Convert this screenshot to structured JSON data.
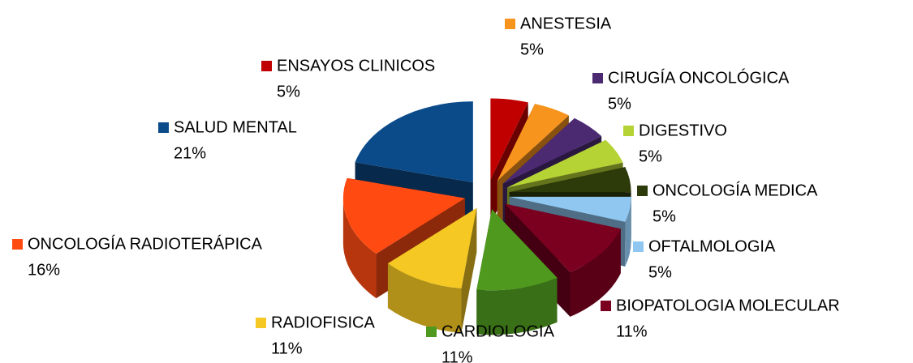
{
  "chart_data": {
    "type": "pie",
    "categories": [
      "ENSAYOS CLINICOS",
      "ANESTESIA",
      "CIRUGÍA ONCOLÓGICA",
      "DIGESTIVO",
      "ONCOLOGÍA MEDICA",
      "OFTALMOLOGIA",
      "BIOPATOLOGIA MOLECULAR",
      "CARDIOLOGIA",
      "RADIOFISICA",
      "ONCOLOGÍA RADIOTERÁPICA",
      "SALUD MENTAL"
    ],
    "values": [
      5,
      5,
      5,
      5,
      5,
      5,
      11,
      11,
      11,
      16,
      21
    ],
    "value_labels": [
      "5%",
      "5%",
      "5%",
      "5%",
      "5%",
      "5%",
      "11%",
      "11%",
      "11%",
      "16%",
      "21%"
    ],
    "colors": [
      "#c00000",
      "#f7941d",
      "#4b2a72",
      "#b5d334",
      "#2d3b0a",
      "#8fc7f0",
      "#7b0020",
      "#4f9a1e",
      "#f5c823",
      "#ff4b12",
      "#0b4b8a"
    ]
  }
}
